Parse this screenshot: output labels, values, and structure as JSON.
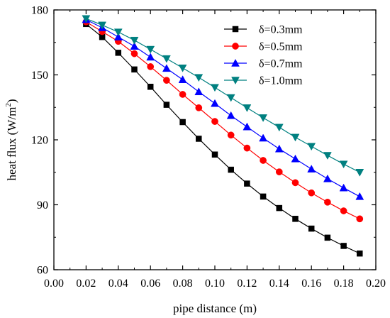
{
  "chart_data": {
    "type": "line",
    "xlabel": "pipe distance (m)",
    "ylabel": {
      "prefix": "heat flux (W/m",
      "sup": "2",
      "suffix": ")"
    },
    "xlim": [
      0.0,
      0.2
    ],
    "ylim": [
      60,
      180
    ],
    "xticks": [
      0.0,
      0.02,
      0.04,
      0.06,
      0.08,
      0.1,
      0.12,
      0.14,
      0.16,
      0.18,
      0.2
    ],
    "xtick_labels": [
      "0.00",
      "0.02",
      "0.04",
      "0.06",
      "0.08",
      "0.10",
      "0.12",
      "0.14",
      "0.16",
      "0.18",
      "0.20"
    ],
    "yticks": [
      60,
      90,
      120,
      150,
      180
    ],
    "ytick_labels": [
      "60",
      "90",
      "120",
      "150",
      "180"
    ],
    "grid": false,
    "legend_position": "top-right",
    "x": [
      0.02,
      0.03,
      0.04,
      0.05,
      0.06,
      0.07,
      0.08,
      0.09,
      0.1,
      0.11,
      0.12,
      0.13,
      0.14,
      0.15,
      0.16,
      0.17,
      0.18,
      0.19
    ],
    "series": [
      {
        "name": "δ=0.3mm",
        "color": "#000000",
        "marker": "square",
        "values": [
          173.5,
          167.5,
          160.2,
          152.5,
          144.5,
          136.2,
          128.2,
          120.5,
          113.2,
          106.2,
          99.8,
          93.8,
          88.5,
          83.5,
          79.0,
          74.8,
          71.0,
          67.5
        ]
      },
      {
        "name": "δ=0.5mm",
        "color": "#ff0000",
        "marker": "circle",
        "values": [
          174.5,
          170.0,
          165.5,
          159.8,
          153.8,
          147.5,
          141.0,
          134.8,
          128.5,
          122.2,
          116.2,
          110.5,
          105.2,
          100.2,
          95.5,
          91.2,
          87.2,
          83.5
        ]
      },
      {
        "name": "δ=0.7mm",
        "color": "#0000ff",
        "marker": "triangle-up",
        "values": [
          175.5,
          171.8,
          167.5,
          163.2,
          158.2,
          153.0,
          147.8,
          142.2,
          136.8,
          131.2,
          126.0,
          120.8,
          115.8,
          111.2,
          106.5,
          102.0,
          97.8,
          93.8
        ]
      },
      {
        "name": "δ=1.0mm",
        "color": "#008080",
        "marker": "triangle-down",
        "values": [
          176.0,
          173.0,
          169.8,
          166.0,
          161.8,
          157.5,
          153.2,
          148.8,
          144.2,
          139.5,
          134.8,
          130.2,
          125.8,
          121.2,
          117.0,
          112.8,
          108.8,
          105.0
        ]
      }
    ]
  }
}
